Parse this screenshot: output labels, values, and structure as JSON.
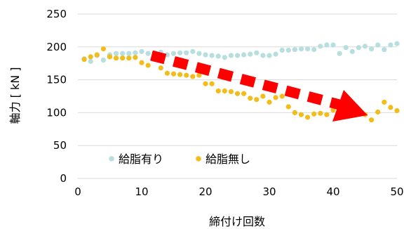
{
  "chart_data": {
    "type": "scatter",
    "title": "",
    "xlabel": "締付け回数",
    "ylabel": "軸力 [ kN ]",
    "xlim": [
      0,
      50
    ],
    "ylim": [
      0,
      250
    ],
    "xticks": [
      0,
      10,
      20,
      30,
      40,
      50
    ],
    "yticks": [
      0,
      50,
      100,
      150,
      200,
      250
    ],
    "grid": "horizontal",
    "legend_position": "bottom-left",
    "annotation": "red dashed arrow pointing down-right (decreasing trend)",
    "series": [
      {
        "name": "給脂有り",
        "color": "#b7dfe0",
        "x": [
          1,
          2,
          3,
          4,
          5,
          6,
          7,
          8,
          9,
          10,
          11,
          12,
          13,
          14,
          15,
          16,
          17,
          18,
          19,
          20,
          21,
          22,
          23,
          24,
          25,
          26,
          27,
          28,
          29,
          30,
          31,
          32,
          33,
          34,
          35,
          36,
          37,
          38,
          39,
          40,
          41,
          42,
          43,
          44,
          45,
          46,
          47,
          48,
          49,
          50
        ],
        "y": [
          182,
          178,
          187,
          180,
          188,
          190,
          190,
          190,
          191,
          193,
          190,
          191,
          192,
          188,
          190,
          191,
          191,
          193,
          190,
          188,
          187,
          186,
          184,
          187,
          187,
          188,
          189,
          191,
          187,
          187,
          189,
          195,
          195,
          196,
          197,
          197,
          196,
          201,
          203,
          203,
          190,
          199,
          193,
          199,
          201,
          197,
          203,
          196,
          203,
          205
        ]
      },
      {
        "name": "給脂無し",
        "color": "#f2bd1a",
        "x": [
          1,
          2,
          3,
          4,
          5,
          6,
          7,
          8,
          9,
          10,
          11,
          12,
          13,
          14,
          15,
          16,
          17,
          18,
          19,
          20,
          21,
          22,
          23,
          24,
          25,
          26,
          27,
          28,
          29,
          30,
          31,
          32,
          33,
          34,
          35,
          36,
          37,
          38,
          39,
          40,
          41,
          42,
          43,
          44,
          45,
          46,
          47,
          48,
          49,
          50
        ],
        "y": [
          181,
          185,
          188,
          197,
          185,
          183,
          183,
          183,
          184,
          176,
          172,
          181,
          168,
          160,
          159,
          158,
          157,
          155,
          157,
          144,
          144,
          133,
          133,
          132,
          129,
          129,
          122,
          120,
          125,
          116,
          123,
          125,
          109,
          100,
          97,
          93,
          98,
          99,
          97,
          104,
          106,
          98,
          107,
          103,
          97,
          89,
          101,
          116,
          108,
          103
        ]
      }
    ]
  },
  "colors": {
    "grid": "#d9d9d9",
    "arrow": "#ff0000"
  }
}
